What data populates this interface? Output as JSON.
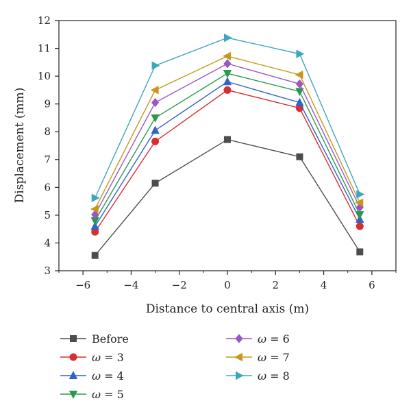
{
  "chart_data": {
    "type": "line",
    "xlabel": "Distance to central axis (m)",
    "ylabel": "Displacement (mm)",
    "xlim": [
      -7,
      7
    ],
    "ylim": [
      3,
      12
    ],
    "xticks": [
      -6,
      -4,
      -2,
      0,
      2,
      4,
      6
    ],
    "yticks": [
      3,
      4,
      5,
      6,
      7,
      8,
      9,
      10,
      11,
      12
    ],
    "x": [
      -5.5,
      -3,
      0,
      3,
      5.5
    ],
    "grid": false,
    "legend_position": "bottom",
    "series": [
      {
        "name": "Before",
        "omega": "",
        "color": "#4d4d4d",
        "marker": "square",
        "values": [
          3.55,
          6.15,
          7.72,
          7.1,
          3.68
        ]
      },
      {
        "name": "ω = 3",
        "omega": "3",
        "color": "#d62f2f",
        "marker": "circle",
        "values": [
          4.4,
          7.65,
          9.5,
          8.85,
          4.6
        ]
      },
      {
        "name": "ω = 4",
        "omega": "4",
        "color": "#2f63c8",
        "marker": "triangle-up",
        "values": [
          4.6,
          8.05,
          9.8,
          9.05,
          4.85
        ]
      },
      {
        "name": "ω = 5",
        "omega": "5",
        "color": "#2a9a4a",
        "marker": "triangle-down",
        "values": [
          4.8,
          8.5,
          10.1,
          9.45,
          5.02
        ]
      },
      {
        "name": "ω = 6",
        "omega": "6",
        "color": "#9a55c8",
        "marker": "diamond",
        "values": [
          5.02,
          9.05,
          10.45,
          9.72,
          5.28
        ]
      },
      {
        "name": "ω = 7",
        "omega": "7",
        "color": "#c9961a",
        "marker": "triangle-left",
        "values": [
          5.22,
          9.5,
          10.72,
          10.05,
          5.45
        ]
      },
      {
        "name": "ω = 8",
        "omega": "8",
        "color": "#3aa8b8",
        "marker": "triangle-right",
        "values": [
          5.62,
          10.38,
          11.38,
          10.8,
          5.75
        ]
      }
    ]
  }
}
